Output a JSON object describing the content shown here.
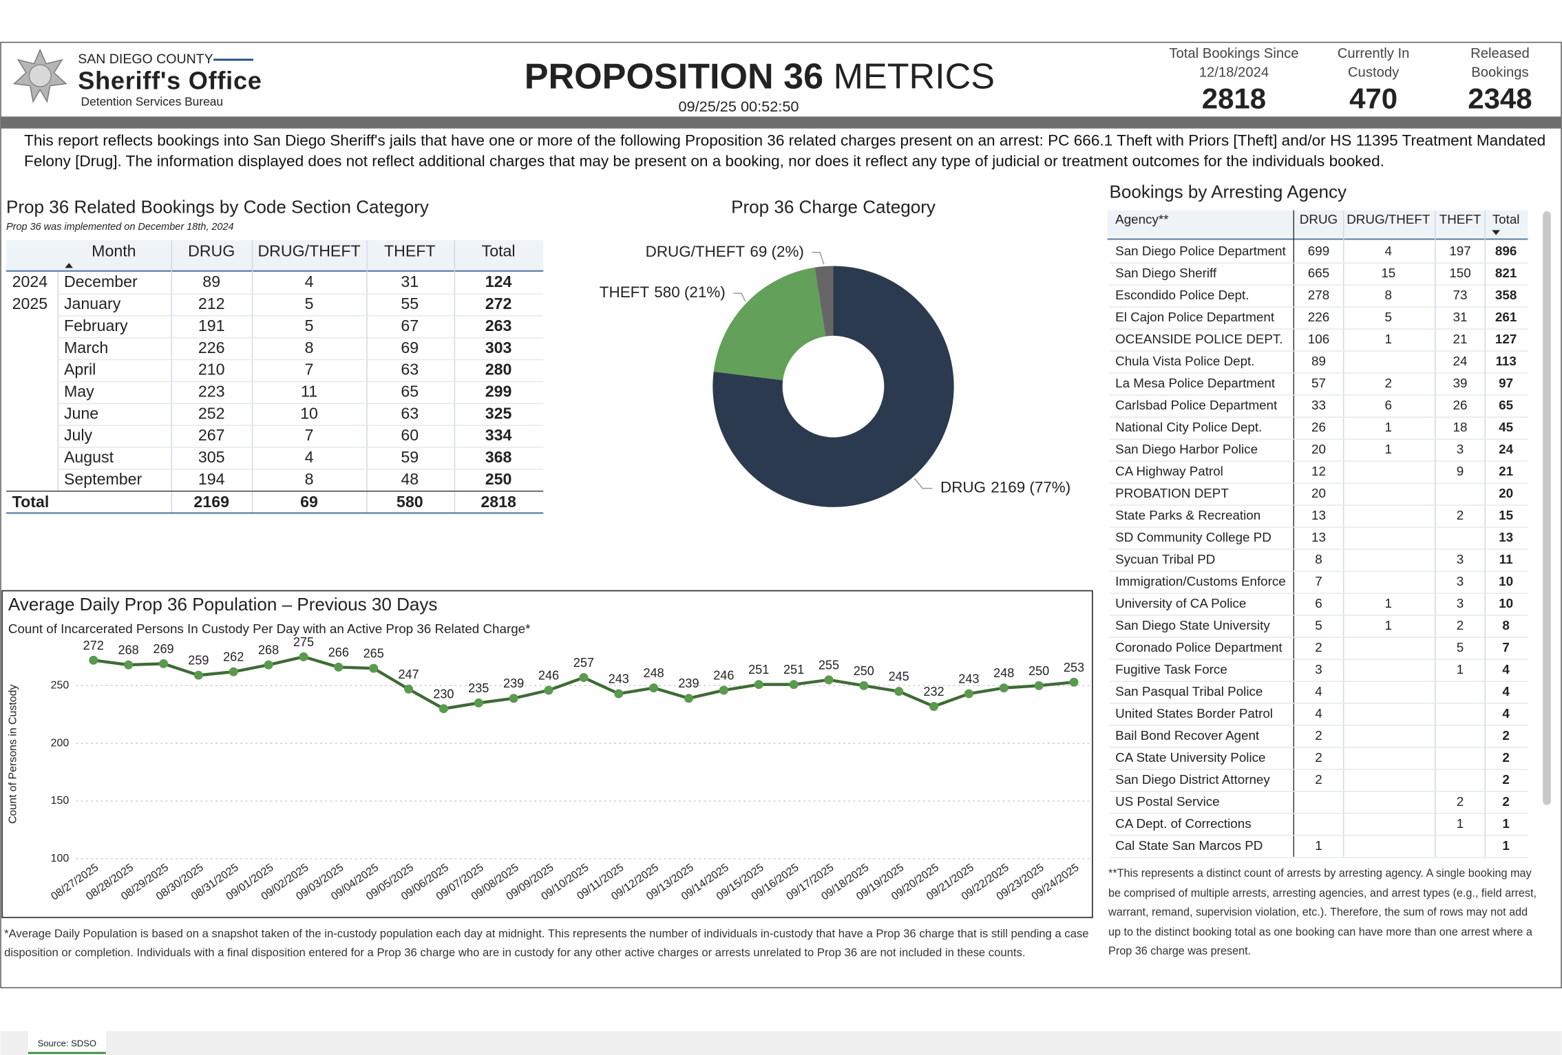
{
  "header": {
    "county": "SAN DIEGO COUNTY",
    "office": "Sheriff's Office",
    "bureau": "Detention Services Bureau",
    "title_bold": "PROPOSITION 36",
    "title_rest": "METRICS",
    "timestamp": "09/25/25 00:52:50"
  },
  "kpis": [
    {
      "label": "Total Bookings Since 12/18/2024",
      "value": 2818
    },
    {
      "label": "Currently In Custody",
      "value": 470
    },
    {
      "label": "Released Bookings",
      "value": 2348
    }
  ],
  "description": "This report reflects bookings into San Diego Sheriff's jails that have one or more of the following Proposition 36 related charges present on an arrest: PC 666.1 Theft with Priors [Theft] and/or HS 11395 Treatment Mandated Felony [Drug]. The information displayed does not reflect additional charges that may be present on a booking, nor does it reflect any type of judicial or treatment outcomes for the individuals booked.",
  "bookings_table": {
    "title": "Prop 36 Related Bookings by Code Section Category",
    "subtitle": "Prop 36 was implemented on December 18th, 2024",
    "columns": [
      "Month",
      "DRUG",
      "DRUG/THEFT",
      "THEFT",
      "Total"
    ],
    "rows": [
      {
        "year": "2024",
        "month": "December",
        "values": [
          89,
          4,
          31,
          124
        ]
      },
      {
        "year": "2025",
        "month": "January",
        "values": [
          212,
          5,
          55,
          272
        ]
      },
      {
        "year": null,
        "month": "February",
        "values": [
          191,
          5,
          67,
          263
        ]
      },
      {
        "year": null,
        "month": "March",
        "values": [
          226,
          8,
          69,
          303
        ]
      },
      {
        "year": null,
        "month": "April",
        "values": [
          210,
          7,
          63,
          280
        ]
      },
      {
        "year": null,
        "month": "May",
        "values": [
          223,
          11,
          65,
          299
        ]
      },
      {
        "year": null,
        "month": "June",
        "values": [
          252,
          10,
          63,
          325
        ]
      },
      {
        "year": null,
        "month": "July",
        "values": [
          267,
          7,
          60,
          334
        ]
      },
      {
        "year": null,
        "month": "August",
        "values": [
          305,
          4,
          59,
          368
        ]
      },
      {
        "year": null,
        "month": "September",
        "values": [
          194,
          8,
          48,
          250
        ]
      }
    ],
    "total": {
      "label": "Total",
      "values": [
        2169,
        69,
        580,
        2818
      ]
    }
  },
  "chart_data": [
    {
      "type": "pie",
      "title": "Prop 36 Charge Category",
      "donut": true,
      "categories": [
        "DRUG",
        "THEFT",
        "DRUG/THEFT"
      ],
      "values": [
        2169,
        580,
        69
      ],
      "value_labels": [
        "2169 (77%)",
        "580 (21%)",
        "69 (2%)"
      ],
      "colors": [
        "#2b3a4e",
        "#63a05a",
        "#666666"
      ]
    },
    {
      "type": "line",
      "title": "Average Daily Prop 36 Population – Previous 30 Days",
      "subtitle": "Count of Incarcerated Persons In Custody Per Day with an Active Prop 36 Related Charge*",
      "y_label": "Count of Persons in Custody",
      "x": [
        "08/27/2025",
        "08/28/2025",
        "08/29/2025",
        "08/30/2025",
        "08/31/2025",
        "09/01/2025",
        "09/02/2025",
        "09/03/2025",
        "09/04/2025",
        "09/05/2025",
        "09/06/2025",
        "09/07/2025",
        "09/08/2025",
        "09/09/2025",
        "09/10/2025",
        "09/11/2025",
        "09/12/2025",
        "09/13/2025",
        "09/14/2025",
        "09/15/2025",
        "09/16/2025",
        "09/17/2025",
        "09/18/2025",
        "09/19/2025",
        "09/20/2025",
        "09/21/2025",
        "09/22/2025",
        "09/23/2025",
        "09/24/2025"
      ],
      "values": [
        272,
        268,
        269,
        259,
        262,
        268,
        275,
        266,
        265,
        247,
        230,
        235,
        239,
        246,
        257,
        243,
        248,
        239,
        246,
        251,
        251,
        255,
        250,
        245,
        232,
        243,
        248,
        250,
        253
      ],
      "color": "#3f6b35",
      "marker_color": "#5a9a4f",
      "data_labels": true,
      "ylim": [
        100,
        283
      ],
      "yticks": [
        100,
        150,
        200,
        250
      ],
      "grid": true
    }
  ],
  "line_footnote": "*Average Daily Population is based on a snapshot taken of the in-custody population each day at midnight. This represents the number of individuals in-custody that have a Prop 36 charge that is still pending a case disposition or completion. Individuals with a final disposition entered for a Prop 36 charge who are in custody for any other active charges or arrests unrelated to Prop 36 are not included in these counts.",
  "agency_table": {
    "title": "Bookings by Arresting Agency",
    "columns": [
      "Agency**",
      "DRUG",
      "DRUG/THEFT",
      "THEFT",
      "Total"
    ],
    "rows": [
      {
        "agency": "San Diego Police Department",
        "values": [
          699,
          4,
          197,
          896
        ]
      },
      {
        "agency": "San Diego Sheriff",
        "values": [
          665,
          15,
          150,
          821
        ]
      },
      {
        "agency": "Escondido Police Dept.",
        "values": [
          278,
          8,
          73,
          358
        ]
      },
      {
        "agency": "El Cajon Police Department",
        "values": [
          226,
          5,
          31,
          261
        ]
      },
      {
        "agency": "OCEANSIDE POLICE DEPT.",
        "values": [
          106,
          1,
          21,
          127
        ]
      },
      {
        "agency": "Chula Vista Police Dept.",
        "values": [
          89,
          null,
          24,
          113
        ]
      },
      {
        "agency": "La Mesa Police Department",
        "values": [
          57,
          2,
          39,
          97
        ]
      },
      {
        "agency": "Carlsbad Police Department",
        "values": [
          33,
          6,
          26,
          65
        ]
      },
      {
        "agency": "National City Police Dept.",
        "values": [
          26,
          1,
          18,
          45
        ]
      },
      {
        "agency": "San Diego Harbor Police",
        "values": [
          20,
          1,
          3,
          24
        ]
      },
      {
        "agency": "CA Highway Patrol",
        "values": [
          12,
          null,
          9,
          21
        ]
      },
      {
        "agency": "PROBATION DEPT",
        "values": [
          20,
          null,
          null,
          20
        ]
      },
      {
        "agency": "State Parks & Recreation",
        "values": [
          13,
          null,
          2,
          15
        ]
      },
      {
        "agency": "SD Community College PD",
        "values": [
          13,
          null,
          null,
          13
        ]
      },
      {
        "agency": "Sycuan Tribal PD",
        "values": [
          8,
          null,
          3,
          11
        ]
      },
      {
        "agency": "Immigration/Customs Enforce",
        "values": [
          7,
          null,
          3,
          10
        ]
      },
      {
        "agency": "University of CA Police",
        "values": [
          6,
          1,
          3,
          10
        ]
      },
      {
        "agency": "San Diego State University",
        "values": [
          5,
          1,
          2,
          8
        ]
      },
      {
        "agency": "Coronado Police Department",
        "values": [
          2,
          null,
          5,
          7
        ]
      },
      {
        "agency": "Fugitive Task Force",
        "values": [
          3,
          null,
          1,
          4
        ]
      },
      {
        "agency": "San Pasqual Tribal Police",
        "values": [
          4,
          null,
          null,
          4
        ]
      },
      {
        "agency": "United States Border Patrol",
        "values": [
          4,
          null,
          null,
          4
        ]
      },
      {
        "agency": "Bail Bond Recover Agent",
        "values": [
          2,
          null,
          null,
          2
        ]
      },
      {
        "agency": "CA State University Police",
        "values": [
          2,
          null,
          null,
          2
        ]
      },
      {
        "agency": "San Diego District Attorney",
        "values": [
          2,
          null,
          null,
          2
        ]
      },
      {
        "agency": "US Postal Service",
        "values": [
          null,
          null,
          2,
          2
        ]
      },
      {
        "agency": "CA Dept. of Corrections",
        "values": [
          null,
          null,
          1,
          1
        ]
      },
      {
        "agency": "Cal State San Marcos PD",
        "values": [
          1,
          null,
          null,
          1
        ]
      }
    ],
    "footnote": "**This represents a distinct count of arrests by arresting agency. A single booking may be comprised of multiple arrests, arresting agencies, and arrest types (e.g., field arrest, warrant, remand, supervision violation, etc.). Therefore, the sum of rows may not add up to the distinct booking total as one booking can have more than one arrest where a Prop 36 charge was present."
  },
  "tab": "Source: SDSO"
}
